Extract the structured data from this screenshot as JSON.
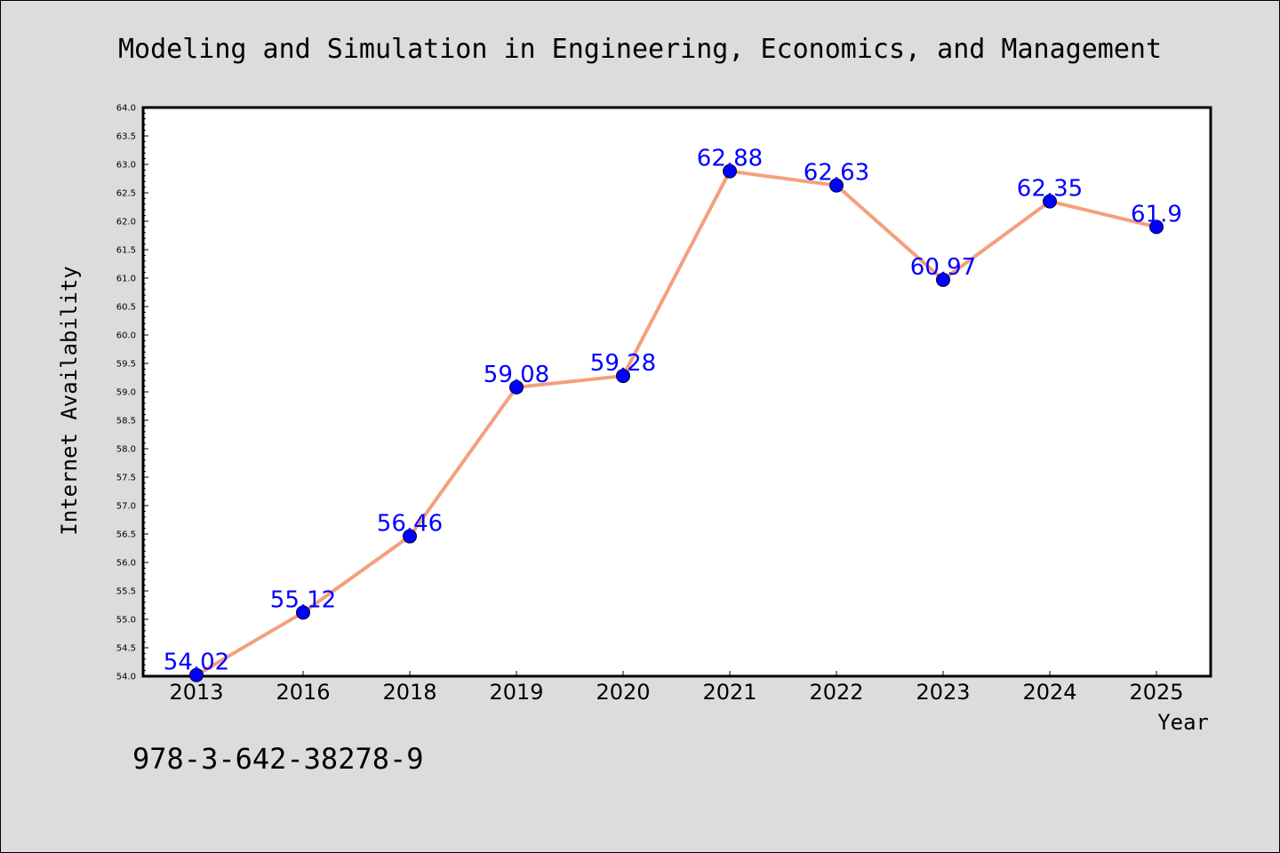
{
  "title": "Modeling and Simulation in Engineering, Economics, and Management",
  "isbn": "978-3-642-38278-9",
  "colors": {
    "background": "#dcdcdc",
    "plot_background": "#ffffff",
    "line": "#f4a07c",
    "marker": "#0000ff",
    "data_label": "#0000ff"
  },
  "chart_data": {
    "type": "line",
    "xlabel": "Year",
    "ylabel": "Internet Availability",
    "categories": [
      "2013",
      "2016",
      "2018",
      "2019",
      "2020",
      "2021",
      "2022",
      "2023",
      "2024",
      "2025"
    ],
    "series": [
      {
        "values": [
          54.02,
          55.12,
          56.46,
          59.08,
          59.28,
          62.88,
          62.63,
          60.97,
          62.35,
          61.9
        ],
        "labels": [
          "54.02",
          "55.12",
          "56.46",
          "59.08",
          "59.28",
          "62.88",
          "62.63",
          "60.97",
          "62.35",
          "61.9"
        ]
      }
    ],
    "ylim": [
      54.0,
      64.0
    ],
    "yticks": [
      "54.0",
      "54.5",
      "55.0",
      "55.5",
      "56.0",
      "56.5",
      "57.0",
      "57.5",
      "58.0",
      "58.5",
      "59.0",
      "59.5",
      "60.0",
      "60.5",
      "61.0",
      "61.5",
      "62.0",
      "62.5",
      "63.0",
      "63.5",
      "64.0"
    ],
    "grid": false,
    "legend": "none"
  }
}
